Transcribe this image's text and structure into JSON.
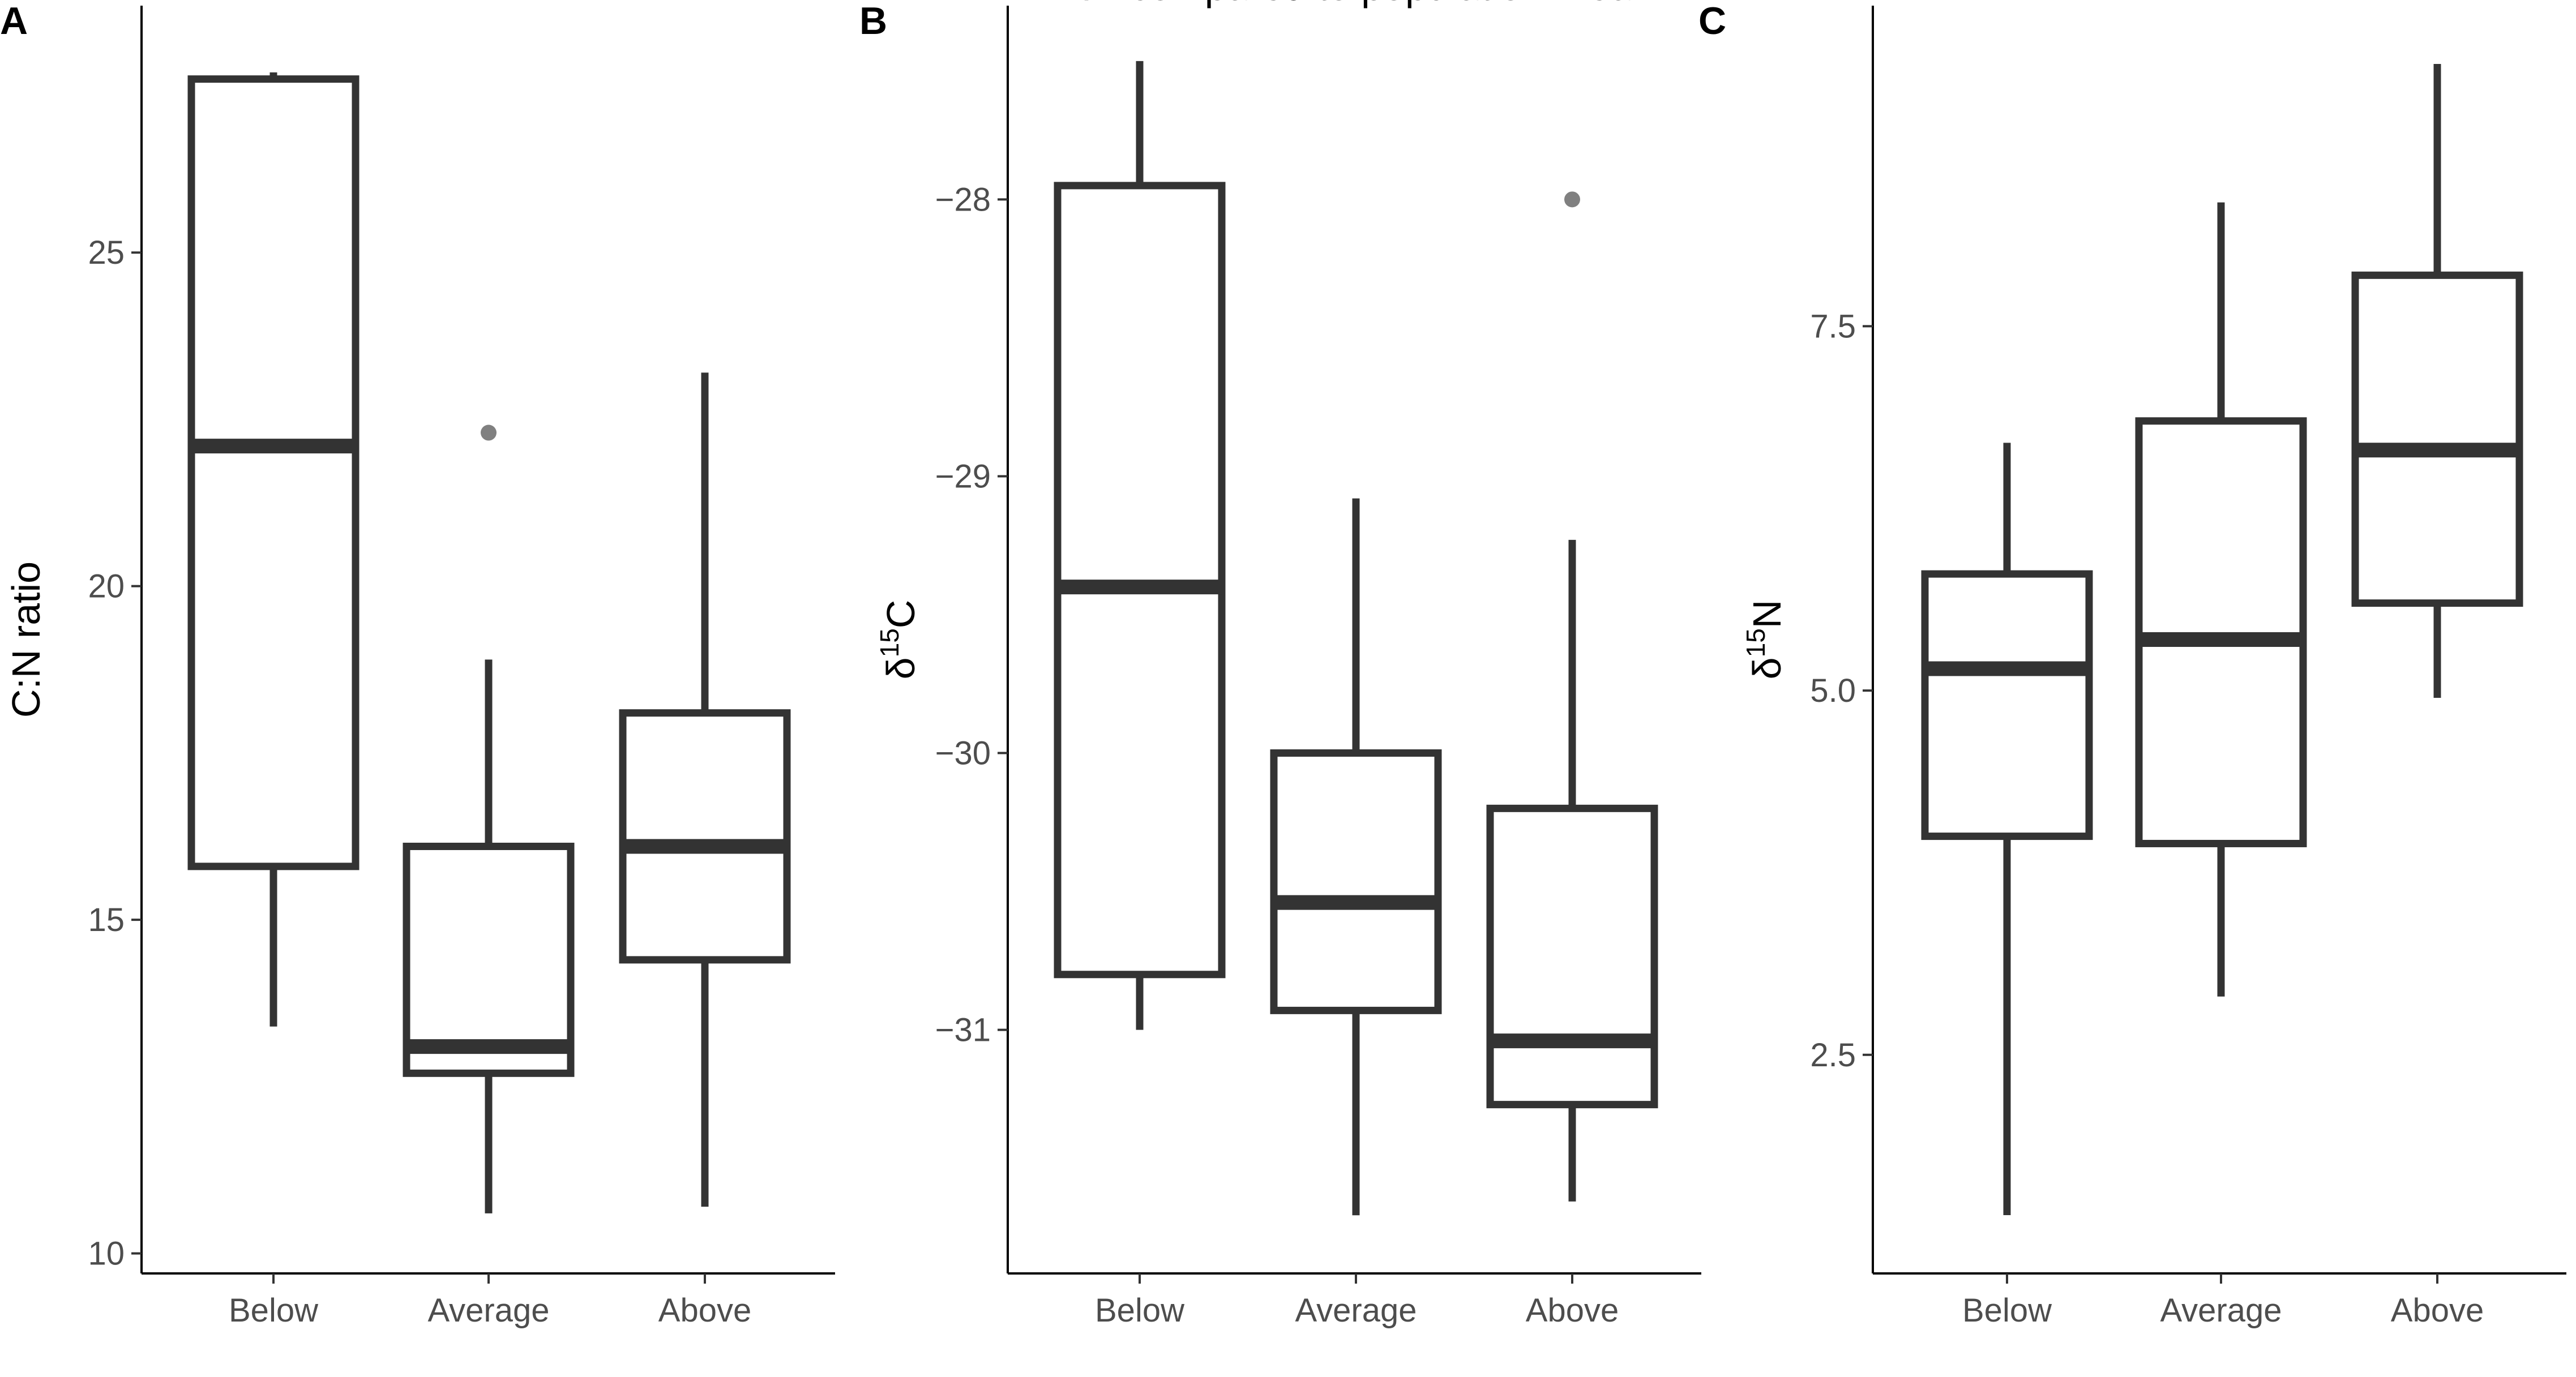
{
  "chart_data": [
    {
      "type": "boxplot",
      "panel": "A",
      "ylabel": "C:N ratio",
      "xlabel": "",
      "categories": [
        "Below",
        "Average",
        "Above"
      ],
      "ylim": [
        9.7,
        28.7
      ],
      "yticks": [
        10,
        15,
        20,
        25
      ],
      "ytick_labels": [
        "10",
        "15",
        "20",
        "25"
      ],
      "boxes": [
        {
          "category": "Below",
          "whisker_low": 13.4,
          "q1": 15.8,
          "median": 22.1,
          "q3": 27.6,
          "whisker_high": 27.7,
          "outliers": []
        },
        {
          "category": "Average",
          "whisker_low": 10.6,
          "q1": 12.7,
          "median": 13.1,
          "q3": 16.1,
          "whisker_high": 18.9,
          "outliers": [
            22.3
          ]
        },
        {
          "category": "Above",
          "whisker_low": 10.7,
          "q1": 14.4,
          "median": 16.1,
          "q3": 18.1,
          "whisker_high": 23.2,
          "outliers": []
        }
      ]
    },
    {
      "type": "boxplot",
      "panel": "B",
      "ylabel": "δ15C",
      "xlabel": "API compared to population mean",
      "categories": [
        "Below",
        "Average",
        "Above"
      ],
      "ylim": [
        -31.88,
        -27.3
      ],
      "yticks": [
        -31,
        -30,
        -29,
        -28
      ],
      "ytick_labels": [
        "−31",
        "−30",
        "−29",
        "−28"
      ],
      "boxes": [
        {
          "category": "Below",
          "whisker_low": -31.0,
          "q1": -30.8,
          "median": -29.4,
          "q3": -27.95,
          "whisker_high": -27.5,
          "outliers": []
        },
        {
          "category": "Average",
          "whisker_low": -31.67,
          "q1": -30.93,
          "median": -30.54,
          "q3": -30.0,
          "whisker_high": -29.08,
          "outliers": []
        },
        {
          "category": "Above",
          "whisker_low": -31.62,
          "q1": -31.27,
          "median": -31.04,
          "q3": -30.2,
          "whisker_high": -29.23,
          "outliers": [
            -28.0
          ]
        }
      ]
    },
    {
      "type": "boxplot",
      "panel": "C",
      "ylabel": "δ15N",
      "xlabel": "",
      "categories": [
        "Below",
        "Average",
        "Above"
      ],
      "ylim": [
        1.0,
        9.7
      ],
      "yticks": [
        2.5,
        5.0,
        7.5
      ],
      "ytick_labels": [
        "2.5",
        "5.0",
        "7.5"
      ],
      "boxes": [
        {
          "category": "Below",
          "whisker_low": 1.4,
          "q1": 4.0,
          "median": 5.15,
          "q3": 5.8,
          "whisker_high": 6.7,
          "outliers": []
        },
        {
          "category": "Average",
          "whisker_low": 2.9,
          "q1": 3.95,
          "median": 5.35,
          "q3": 6.85,
          "whisker_high": 8.35,
          "outliers": []
        },
        {
          "category": "Above",
          "whisker_low": 4.95,
          "q1": 5.6,
          "median": 6.65,
          "q3": 7.85,
          "whisker_high": 9.3,
          "outliers": []
        }
      ]
    }
  ]
}
